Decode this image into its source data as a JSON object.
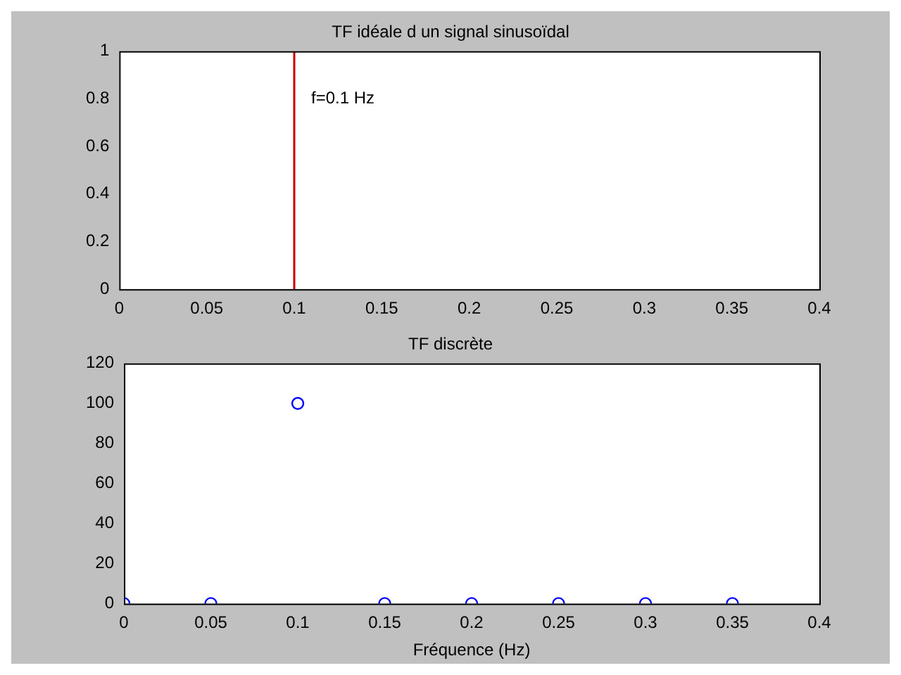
{
  "chart_data": [
    {
      "type": "line",
      "title": "TF idéale d un signal sinusoïdal",
      "x": [
        0.1,
        0.1
      ],
      "series": [
        {
          "color": "#cc0000",
          "values": [
            0,
            1
          ]
        }
      ],
      "xlim": [
        0,
        0.4
      ],
      "xticks": [
        0,
        0.05,
        0.1,
        0.15,
        0.2,
        0.25,
        0.3,
        0.35,
        0.4
      ],
      "ylim": [
        0,
        1
      ],
      "yticks": [
        0,
        0.2,
        0.4,
        0.6,
        0.8,
        1
      ],
      "marker": "none",
      "annotations": [
        {
          "text": "f=0.1 Hz",
          "x": 0.1,
          "y": 0.8
        }
      ]
    },
    {
      "type": "scatter",
      "title": "TF discrète",
      "xlabel": "Fréquence (Hz)",
      "x": [
        0,
        0.05,
        0.1,
        0.15,
        0.2,
        0.25,
        0.3,
        0.35
      ],
      "series": [
        {
          "color": "#0000ff",
          "values": [
            0,
            0,
            100,
            0,
            0,
            0,
            0,
            0
          ]
        }
      ],
      "xlim": [
        0,
        0.4
      ],
      "xticks": [
        0,
        0.05,
        0.1,
        0.15,
        0.2,
        0.25,
        0.3,
        0.35,
        0.4
      ],
      "ylim": [
        0,
        120
      ],
      "yticks": [
        0,
        20,
        40,
        60,
        80,
        100,
        120
      ],
      "marker": "circle"
    }
  ]
}
